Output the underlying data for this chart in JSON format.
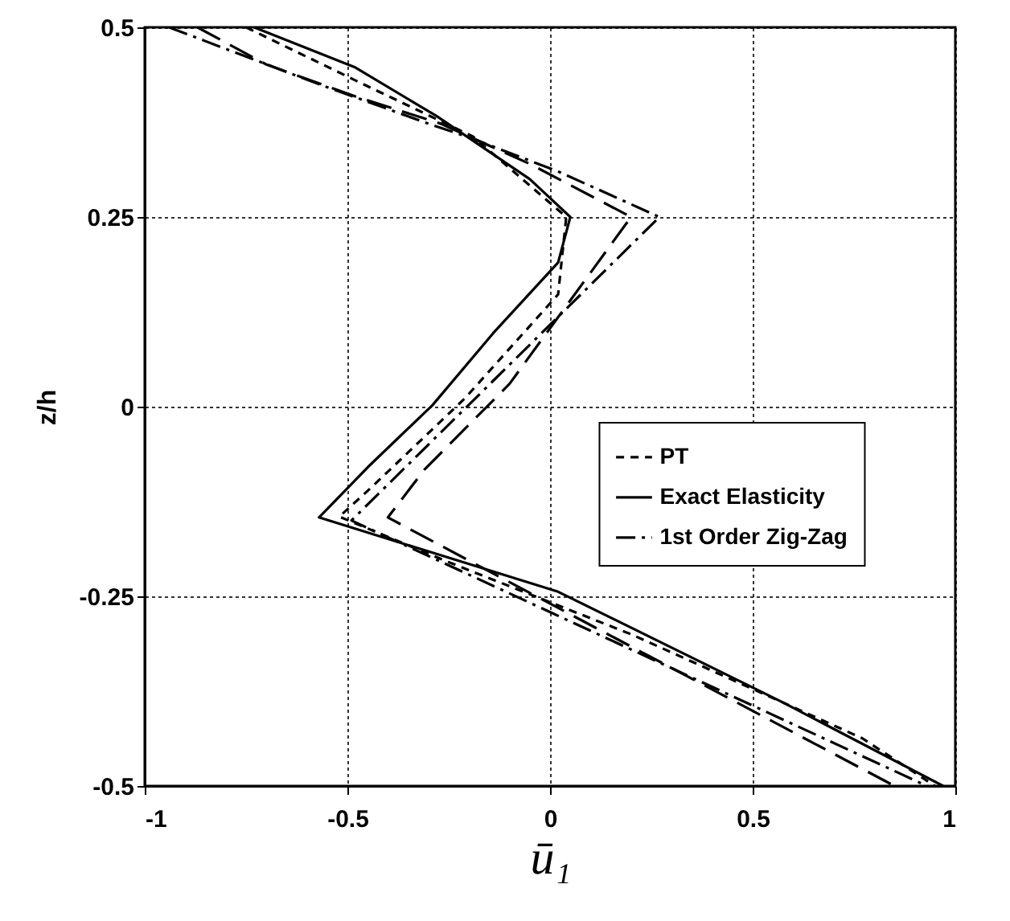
{
  "chart_data": {
    "type": "line",
    "xlabel": "ū₁",
    "ylabel": "z/h",
    "xlim": [
      -1,
      1
    ],
    "ylim": [
      -0.5,
      0.5
    ],
    "xticks": [
      -1,
      -0.5,
      0,
      0.5,
      1
    ],
    "yticks": [
      -0.5,
      -0.25,
      0,
      0.25,
      0.5
    ],
    "grid": true,
    "legend": "right",
    "marker": "none",
    "series": [
      {
        "name": "PT",
        "color": "#000000",
        "line_style": "dashed",
        "x": [
          -0.75,
          -0.48,
          -0.19,
          0.04,
          0.02,
          -0.21,
          -0.44,
          -0.52,
          -0.25,
          0.2,
          0.77,
          0.95
        ],
        "values": [
          0.5,
          0.43,
          0.356,
          0.25,
          0.148,
          0.011,
          -0.106,
          -0.145,
          -0.205,
          -0.3,
          -0.437,
          -0.5
        ]
      },
      {
        "name": "Exact  Elasticity",
        "color": "#000000",
        "line_style": "solid",
        "x": [
          -0.73,
          -0.48,
          -0.28,
          -0.05,
          0.05,
          0.02,
          -0.14,
          -0.29,
          -0.45,
          -0.57,
          0.02,
          0.575,
          0.97
        ],
        "values": [
          0.5,
          0.447,
          0.383,
          0.3,
          0.25,
          0.19,
          0.097,
          0.002,
          -0.08,
          -0.146,
          -0.244,
          -0.39,
          -0.5
        ]
      },
      {
        "name": "1st Order Zig-Zag",
        "color": "#000000",
        "line_style": "dashdot",
        "x": [
          -0.94,
          -0.575,
          -0.3,
          -0.2,
          0.02,
          0.27,
          -0.49,
          0.93
        ],
        "values": [
          0.5,
          0.426,
          0.373,
          0.355,
          0.31,
          0.25,
          -0.15,
          -0.5
        ]
      },
      {
        "color": "#000000",
        "line_style": "longdash",
        "x": [
          -0.87,
          -0.7,
          -0.48,
          -0.27,
          -0.05,
          0.2,
          -0.1,
          -0.31,
          -0.4,
          -0.14,
          0.85
        ],
        "values": [
          0.5,
          0.451,
          0.409,
          0.373,
          0.32,
          0.25,
          0.03,
          -0.083,
          -0.146,
          -0.22,
          -0.5
        ]
      }
    ]
  }
}
